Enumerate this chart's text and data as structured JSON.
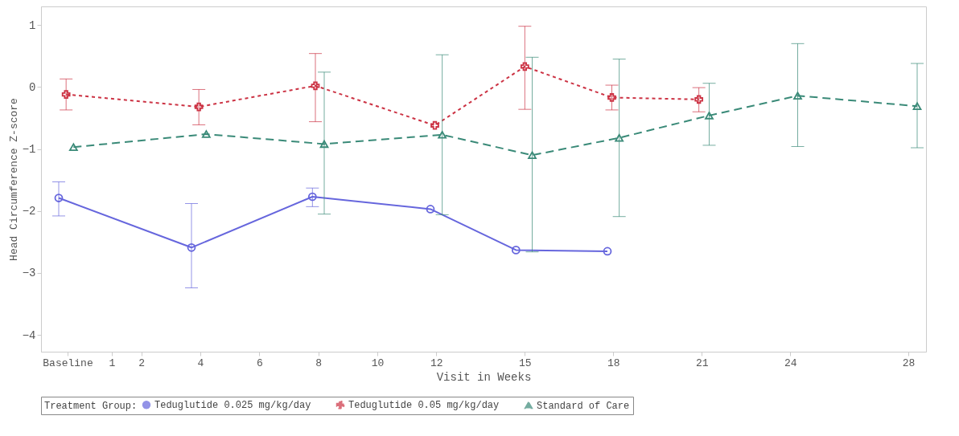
{
  "chart_data": {
    "type": "line",
    "xlabel": "Visit in Weeks",
    "ylabel": "Head Circumference Z-score",
    "legend_title": "Treatment Group:",
    "legend": "bottom",
    "grid": false,
    "xlim": [
      -1.4,
      28.6
    ],
    "xticks": [
      {
        "value": -0.5,
        "label": "Baseline"
      },
      1,
      2,
      4,
      6,
      8,
      10,
      12,
      15,
      18,
      21,
      24,
      28
    ],
    "ylim": [
      -4.27,
      1.3
    ],
    "yticks": [
      -4,
      -3,
      -2,
      -1,
      0,
      1
    ],
    "series": [
      {
        "name": "Teduglutide 0.025 mg/kg/day",
        "color": "#6666dd",
        "marker": "circle",
        "line_style": "solid",
        "x": [
          -0.8,
          3.7,
          7.8,
          11.8,
          14.7,
          17.8
        ],
        "values": [
          -1.79,
          -2.59,
          -1.77,
          -1.97,
          -2.63,
          -2.65
        ],
        "errors": [
          [
            -2.08,
            -1.53
          ],
          [
            -3.24,
            -1.88
          ],
          [
            -1.93,
            -1.63
          ],
          null,
          null,
          null
        ]
      },
      {
        "name": "Teduglutide 0.05 mg/kg/day",
        "color": "#cc3344",
        "marker": "cross",
        "line_style": "dotted",
        "x": [
          -0.55,
          3.95,
          7.9,
          11.95,
          15.0,
          17.95,
          20.9
        ],
        "values": [
          -0.12,
          -0.32,
          0.02,
          -0.62,
          0.33,
          -0.17,
          -0.2
        ],
        "errors": [
          [
            -0.37,
            0.13
          ],
          [
            -0.61,
            -0.04
          ],
          [
            -0.56,
            0.54
          ],
          null,
          [
            -0.36,
            0.98
          ],
          [
            -0.37,
            0.03
          ],
          [
            -0.4,
            -0.01
          ]
        ]
      },
      {
        "name": "Standard of Care",
        "color": "#3a8a78",
        "marker": "triangle",
        "line_style": "dashed",
        "x": [
          -0.3,
          4.2,
          8.2,
          12.2,
          15.25,
          18.2,
          21.25,
          24.25,
          28.3
        ],
        "values": [
          -0.97,
          -0.76,
          -0.92,
          -0.77,
          -1.1,
          -0.82,
          -0.46,
          -0.14,
          -0.31
        ],
        "errors": [
          null,
          null,
          [
            -2.05,
            0.24
          ],
          [
            -2.06,
            0.52
          ],
          [
            -2.66,
            0.48
          ],
          [
            -2.09,
            0.45
          ],
          [
            -0.94,
            0.06
          ],
          [
            -0.96,
            0.7
          ],
          [
            -0.98,
            0.38
          ]
        ]
      }
    ]
  }
}
